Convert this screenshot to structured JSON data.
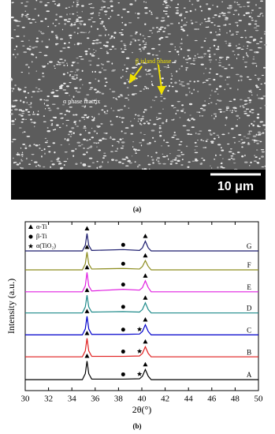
{
  "image": {
    "labels": [
      "β island phase",
      "α phase matrix"
    ],
    "scale_bar": "10 μm",
    "caption": "(a)"
  },
  "chart_data": {
    "type": "line",
    "caption": "(b)",
    "x_label": "2θ(°)",
    "y_label": "Intensity (a.u.)",
    "legend": [
      "α-Ti",
      "β-Ti",
      "α(TiO₂)"
    ],
    "x": [
      30,
      34.9,
      35.15,
      35.3,
      35.45,
      35.7,
      38.4,
      39.8,
      40.05,
      40.3,
      40.55,
      40.8,
      50
    ],
    "xlim": [
      30,
      50
    ],
    "xticks": [
      30,
      32,
      34,
      36,
      38,
      40,
      42,
      44,
      46,
      48,
      50
    ],
    "ylim": [
      0,
      100
    ],
    "series": [
      {
        "name": "G",
        "color": "#1c1c6e",
        "values": [
          82.7,
          82.7,
          86,
          93,
          86,
          83,
          83.5,
          83,
          84.5,
          88.5,
          84.5,
          82.7,
          82.7
        ],
        "markers": [
          {
            "x": 35.3,
            "phase": 0
          },
          {
            "x": 38.4,
            "phase": 1
          },
          {
            "x": 40.3,
            "phase": 0
          }
        ]
      },
      {
        "name": "F",
        "color": "#8c8c1e",
        "values": [
          71.5,
          71.5,
          75,
          82,
          75,
          72,
          72.3,
          72,
          73.5,
          77,
          73.5,
          71.5,
          71.5
        ],
        "markers": [
          {
            "x": 35.3,
            "phase": 0
          },
          {
            "x": 38.4,
            "phase": 1
          },
          {
            "x": 40.3,
            "phase": 0
          }
        ]
      },
      {
        "name": "E",
        "color": "#e020e0",
        "values": [
          58.5,
          58.5,
          62,
          70,
          62,
          59,
          60,
          59.5,
          61,
          65,
          61,
          58.5,
          58.5
        ],
        "markers": [
          {
            "x": 35.3,
            "phase": 0
          },
          {
            "x": 38.4,
            "phase": 1
          },
          {
            "x": 40.3,
            "phase": 0
          }
        ]
      },
      {
        "name": "D",
        "color": "#1e8a8a",
        "values": [
          46,
          46,
          49.5,
          56.5,
          49.5,
          46.5,
          46.8,
          46.5,
          48,
          52,
          48,
          46,
          46
        ],
        "markers": [
          {
            "x": 35.3,
            "phase": 0
          },
          {
            "x": 38.4,
            "phase": 1
          },
          {
            "x": 40.3,
            "phase": 0
          }
        ]
      },
      {
        "name": "C",
        "color": "#0000cc",
        "values": [
          33,
          33,
          36.5,
          44,
          36.5,
          33.3,
          33.3,
          33.5,
          35,
          39,
          35,
          33,
          33
        ],
        "markers": [
          {
            "x": 35.3,
            "phase": 0
          },
          {
            "x": 38.4,
            "phase": 1
          },
          {
            "x": 39.8,
            "phase": 2
          },
          {
            "x": 40.3,
            "phase": 0
          }
        ]
      },
      {
        "name": "B",
        "color": "#e02020",
        "values": [
          20,
          20,
          23.5,
          31,
          23.5,
          20.3,
          20.3,
          20.5,
          22,
          26,
          22,
          20,
          20
        ],
        "markers": [
          {
            "x": 35.3,
            "phase": 0
          },
          {
            "x": 38.4,
            "phase": 1
          },
          {
            "x": 39.8,
            "phase": 2
          },
          {
            "x": 40.3,
            "phase": 0
          }
        ]
      },
      {
        "name": "A",
        "color": "#000000",
        "values": [
          6.5,
          6.5,
          10,
          17.5,
          10,
          6.8,
          6.8,
          7,
          8.5,
          12.5,
          8.5,
          6.5,
          6.5
        ],
        "markers": [
          {
            "x": 35.3,
            "phase": 0
          },
          {
            "x": 38.4,
            "phase": 1
          },
          {
            "x": 39.8,
            "phase": 2
          },
          {
            "x": 40.3,
            "phase": 0
          }
        ]
      }
    ]
  }
}
